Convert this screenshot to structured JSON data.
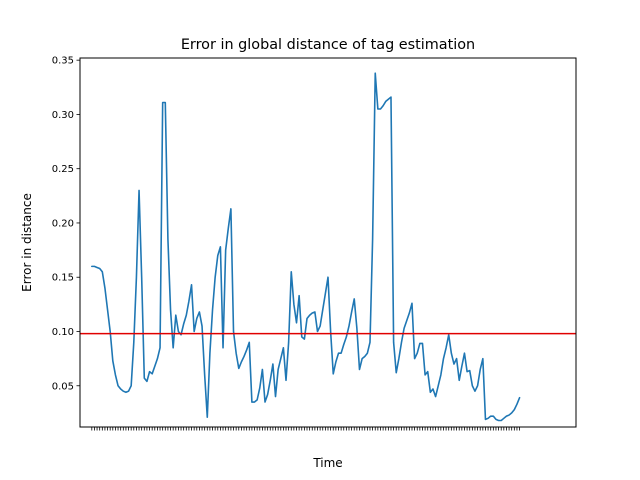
{
  "chart_data": {
    "type": "line",
    "title": "Error in global distance of tag estimation",
    "xlabel": "Time",
    "ylabel": "Error in distance",
    "ylim": [
      0.012,
      0.352
    ],
    "xlim": [
      -4.5,
      184.5
    ],
    "yticks": [
      0.05,
      0.1,
      0.15,
      0.2,
      0.25,
      0.3,
      0.35
    ],
    "ytick_labels": [
      "0.05",
      "0.10",
      "0.15",
      "0.20",
      "0.25",
      "0.30",
      "0.35"
    ],
    "grid": false,
    "legend": "none",
    "line_color": "#1f77b4",
    "threshold": {
      "value": 0.098,
      "color": "#e00000"
    },
    "series": [
      {
        "values": [
          0.16,
          0.16,
          0.159,
          0.158,
          0.155,
          0.14,
          0.12,
          0.1,
          0.073,
          0.06,
          0.05,
          0.047,
          0.045,
          0.044,
          0.045,
          0.05,
          0.09,
          0.15,
          0.23,
          0.15,
          0.057,
          0.054,
          0.063,
          0.061,
          0.068,
          0.075,
          0.085,
          0.311,
          0.311,
          0.185,
          0.12,
          0.085,
          0.115,
          0.1,
          0.097,
          0.107,
          0.115,
          0.128,
          0.143,
          0.1,
          0.112,
          0.118,
          0.105,
          0.06,
          0.021,
          0.08,
          0.12,
          0.15,
          0.17,
          0.178,
          0.085,
          0.175,
          0.195,
          0.213,
          0.1,
          0.08,
          0.066,
          0.072,
          0.077,
          0.083,
          0.09,
          0.035,
          0.035,
          0.037,
          0.048,
          0.065,
          0.035,
          0.042,
          0.055,
          0.07,
          0.04,
          0.065,
          0.075,
          0.085,
          0.055,
          0.09,
          0.155,
          0.125,
          0.108,
          0.133,
          0.095,
          0.093,
          0.112,
          0.115,
          0.117,
          0.118,
          0.1,
          0.105,
          0.12,
          0.135,
          0.15,
          0.1,
          0.061,
          0.072,
          0.08,
          0.08,
          0.088,
          0.095,
          0.105,
          0.118,
          0.13,
          0.103,
          0.065,
          0.075,
          0.077,
          0.08,
          0.09,
          0.185,
          0.338,
          0.305,
          0.305,
          0.308,
          0.312,
          0.314,
          0.316,
          0.09,
          0.062,
          0.075,
          0.09,
          0.103,
          0.11,
          0.117,
          0.126,
          0.075,
          0.08,
          0.089,
          0.089,
          0.06,
          0.063,
          0.044,
          0.047,
          0.04,
          0.05,
          0.06,
          0.075,
          0.085,
          0.097,
          0.08,
          0.07,
          0.075,
          0.055,
          0.068,
          0.08,
          0.063,
          0.064,
          0.05,
          0.045,
          0.05,
          0.065,
          0.075,
          0.019,
          0.02,
          0.022,
          0.022,
          0.019,
          0.018,
          0.018,
          0.02,
          0.022,
          0.023,
          0.025,
          0.028,
          0.033,
          0.039
        ]
      }
    ]
  }
}
